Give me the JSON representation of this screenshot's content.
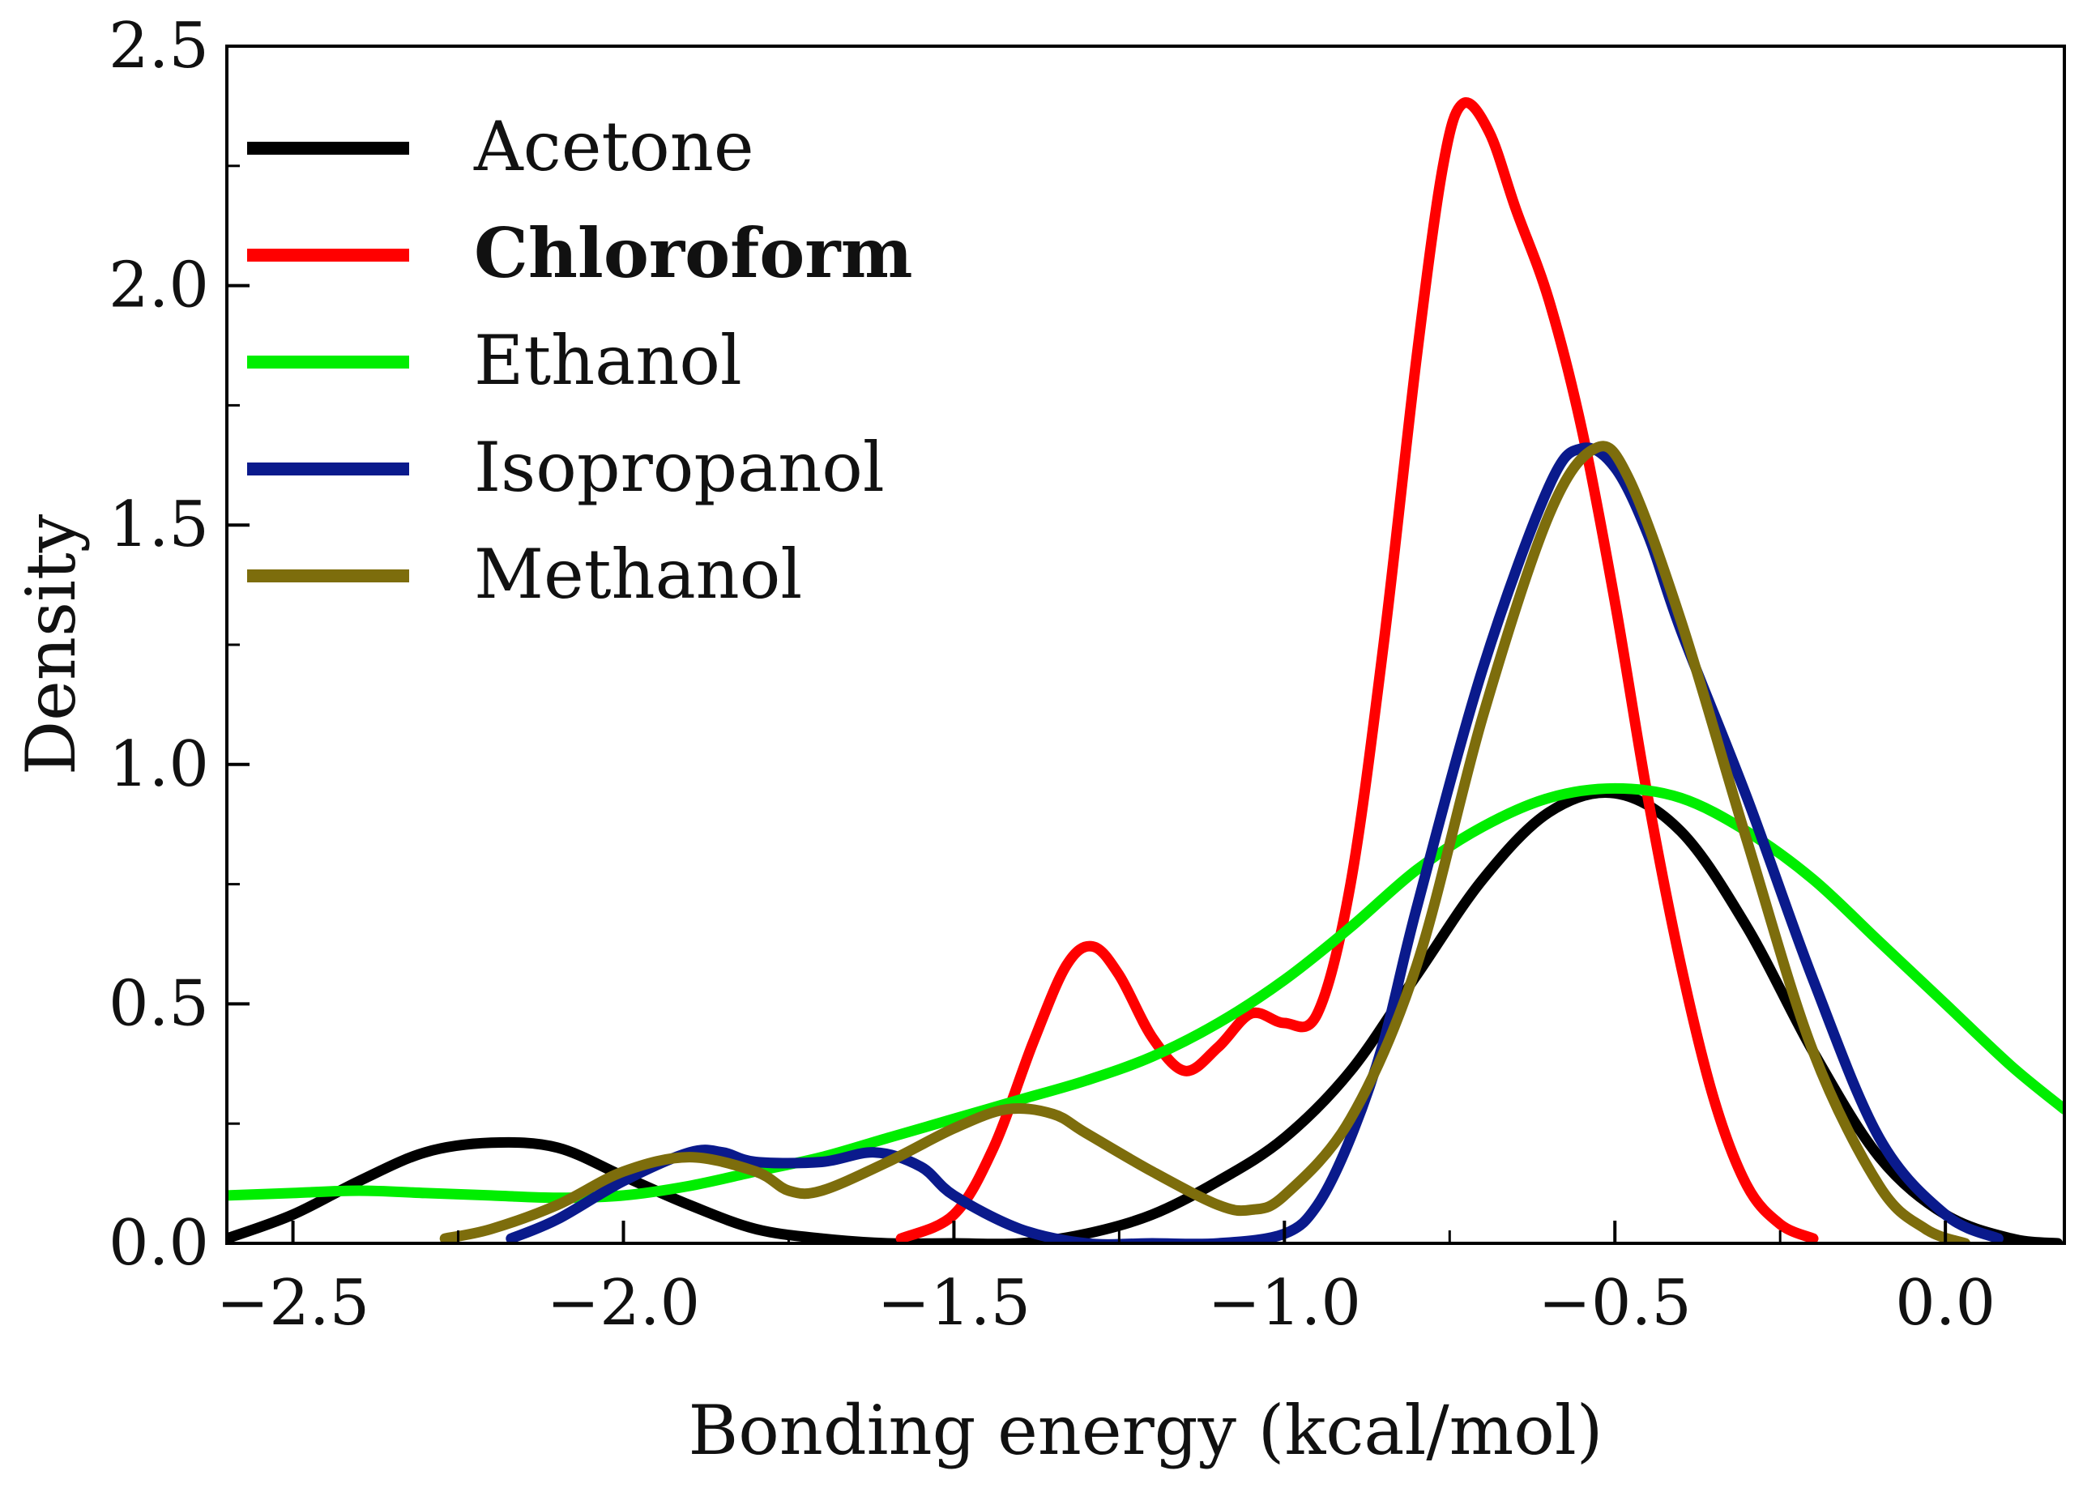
{
  "chart_data": {
    "type": "line",
    "title": "",
    "xlabel": "Bonding energy (kcal/mol)",
    "ylabel": "Density",
    "xlim": [
      -2.6,
      0.18
    ],
    "ylim": [
      0,
      2.5
    ],
    "x_ticks": [
      -2.5,
      -2.0,
      -1.5,
      -1.0,
      -0.5,
      0.0
    ],
    "x_tick_labels": [
      "−2.5",
      "−2.0",
      "−1.5",
      "−1.0",
      "−0.5",
      "0.0"
    ],
    "y_ticks": [
      0,
      0.5,
      1.0,
      1.5,
      2.0,
      2.5
    ],
    "y_tick_labels": [
      "0.0",
      "0.5",
      "1.0",
      "1.5",
      "2.0",
      "2.5"
    ],
    "grid": false,
    "legend_position": "top-left",
    "series": [
      {
        "name": "Acetone",
        "color": "#000000",
        "bold_label": false,
        "points": [
          [
            -2.6,
            0.01
          ],
          [
            -2.5,
            0.06
          ],
          [
            -2.4,
            0.13
          ],
          [
            -2.3,
            0.19
          ],
          [
            -2.2,
            0.21
          ],
          [
            -2.1,
            0.2
          ],
          [
            -2.0,
            0.14
          ],
          [
            -1.9,
            0.08
          ],
          [
            -1.8,
            0.03
          ],
          [
            -1.7,
            0.01
          ],
          [
            -1.6,
            0.0
          ],
          [
            -1.5,
            0.0
          ],
          [
            -1.4,
            0.0
          ],
          [
            -1.3,
            0.02
          ],
          [
            -1.2,
            0.06
          ],
          [
            -1.1,
            0.13
          ],
          [
            -1.0,
            0.22
          ],
          [
            -0.9,
            0.36
          ],
          [
            -0.8,
            0.56
          ],
          [
            -0.7,
            0.76
          ],
          [
            -0.6,
            0.9
          ],
          [
            -0.5,
            0.94
          ],
          [
            -0.4,
            0.86
          ],
          [
            -0.3,
            0.66
          ],
          [
            -0.2,
            0.4
          ],
          [
            -0.1,
            0.18
          ],
          [
            0.0,
            0.06
          ],
          [
            0.1,
            0.01
          ],
          [
            0.17,
            0.0
          ]
        ]
      },
      {
        "name": "Chloroform",
        "color": "#ff0000",
        "bold_label": true,
        "points": [
          [
            -1.58,
            0.01
          ],
          [
            -1.5,
            0.06
          ],
          [
            -1.44,
            0.2
          ],
          [
            -1.38,
            0.42
          ],
          [
            -1.33,
            0.58
          ],
          [
            -1.29,
            0.62
          ],
          [
            -1.25,
            0.56
          ],
          [
            -1.2,
            0.43
          ],
          [
            -1.15,
            0.36
          ],
          [
            -1.1,
            0.41
          ],
          [
            -1.05,
            0.48
          ],
          [
            -1.0,
            0.46
          ],
          [
            -0.95,
            0.48
          ],
          [
            -0.9,
            0.75
          ],
          [
            -0.85,
            1.25
          ],
          [
            -0.8,
            1.85
          ],
          [
            -0.76,
            2.25
          ],
          [
            -0.73,
            2.38
          ],
          [
            -0.69,
            2.32
          ],
          [
            -0.65,
            2.16
          ],
          [
            -0.6,
            1.97
          ],
          [
            -0.55,
            1.7
          ],
          [
            -0.5,
            1.34
          ],
          [
            -0.45,
            0.93
          ],
          [
            -0.4,
            0.58
          ],
          [
            -0.35,
            0.3
          ],
          [
            -0.3,
            0.12
          ],
          [
            -0.25,
            0.04
          ],
          [
            -0.2,
            0.01
          ]
        ]
      },
      {
        "name": "Ethanol",
        "color": "#00ee00",
        "bold_label": false,
        "points": [
          [
            -2.6,
            0.1
          ],
          [
            -2.5,
            0.105
          ],
          [
            -2.4,
            0.11
          ],
          [
            -2.3,
            0.105
          ],
          [
            -2.2,
            0.1
          ],
          [
            -2.1,
            0.095
          ],
          [
            -2.0,
            0.1
          ],
          [
            -1.9,
            0.12
          ],
          [
            -1.8,
            0.15
          ],
          [
            -1.7,
            0.18
          ],
          [
            -1.6,
            0.22
          ],
          [
            -1.5,
            0.26
          ],
          [
            -1.4,
            0.3
          ],
          [
            -1.3,
            0.34
          ],
          [
            -1.2,
            0.39
          ],
          [
            -1.1,
            0.46
          ],
          [
            -1.0,
            0.55
          ],
          [
            -0.9,
            0.66
          ],
          [
            -0.8,
            0.78
          ],
          [
            -0.7,
            0.87
          ],
          [
            -0.6,
            0.93
          ],
          [
            -0.5,
            0.95
          ],
          [
            -0.4,
            0.93
          ],
          [
            -0.3,
            0.86
          ],
          [
            -0.2,
            0.76
          ],
          [
            -0.1,
            0.63
          ],
          [
            0.0,
            0.5
          ],
          [
            0.1,
            0.37
          ],
          [
            0.18,
            0.28
          ]
        ]
      },
      {
        "name": "Isopropanol",
        "color": "#0a1a8c",
        "bold_label": false,
        "points": [
          [
            -2.17,
            0.01
          ],
          [
            -2.1,
            0.05
          ],
          [
            -2.0,
            0.13
          ],
          [
            -1.9,
            0.19
          ],
          [
            -1.85,
            0.19
          ],
          [
            -1.8,
            0.17
          ],
          [
            -1.7,
            0.17
          ],
          [
            -1.62,
            0.19
          ],
          [
            -1.55,
            0.16
          ],
          [
            -1.5,
            0.1
          ],
          [
            -1.4,
            0.03
          ],
          [
            -1.3,
            0.0
          ],
          [
            -1.2,
            0.0
          ],
          [
            -1.1,
            0.0
          ],
          [
            -1.0,
            0.02
          ],
          [
            -0.95,
            0.08
          ],
          [
            -0.9,
            0.22
          ],
          [
            -0.85,
            0.42
          ],
          [
            -0.8,
            0.7
          ],
          [
            -0.7,
            1.2
          ],
          [
            -0.6,
            1.58
          ],
          [
            -0.55,
            1.66
          ],
          [
            -0.5,
            1.62
          ],
          [
            -0.45,
            1.48
          ],
          [
            -0.4,
            1.28
          ],
          [
            -0.3,
            0.93
          ],
          [
            -0.2,
            0.55
          ],
          [
            -0.1,
            0.22
          ],
          [
            0.0,
            0.06
          ],
          [
            0.08,
            0.01
          ]
        ]
      },
      {
        "name": "Methanol",
        "color": "#7d6d0c",
        "bold_label": false,
        "points": [
          [
            -2.27,
            0.01
          ],
          [
            -2.2,
            0.03
          ],
          [
            -2.1,
            0.08
          ],
          [
            -2.0,
            0.15
          ],
          [
            -1.9,
            0.18
          ],
          [
            -1.8,
            0.15
          ],
          [
            -1.75,
            0.11
          ],
          [
            -1.7,
            0.11
          ],
          [
            -1.6,
            0.17
          ],
          [
            -1.5,
            0.24
          ],
          [
            -1.42,
            0.28
          ],
          [
            -1.35,
            0.27
          ],
          [
            -1.3,
            0.23
          ],
          [
            -1.2,
            0.15
          ],
          [
            -1.1,
            0.08
          ],
          [
            -1.05,
            0.07
          ],
          [
            -1.0,
            0.1
          ],
          [
            -0.9,
            0.26
          ],
          [
            -0.8,
            0.58
          ],
          [
            -0.7,
            1.1
          ],
          [
            -0.6,
            1.52
          ],
          [
            -0.53,
            1.66
          ],
          [
            -0.48,
            1.6
          ],
          [
            -0.4,
            1.3
          ],
          [
            -0.3,
            0.84
          ],
          [
            -0.2,
            0.4
          ],
          [
            -0.1,
            0.12
          ],
          [
            -0.03,
            0.03
          ],
          [
            0.03,
            0.0
          ]
        ]
      }
    ]
  }
}
